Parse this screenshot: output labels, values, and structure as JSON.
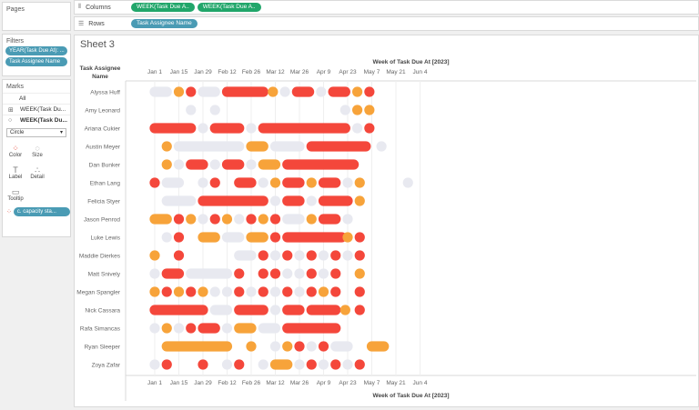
{
  "left_panel": {
    "pages_title": "Pages",
    "filters_title": "Filters",
    "filters": [
      "YEAR(Task Due At): ...",
      "Task Assignee Name"
    ],
    "marks_title": "Marks",
    "marks_rows": [
      {
        "icon": "",
        "label": "All",
        "bold": false
      },
      {
        "icon": "⊞",
        "label": "WEEK(Task Du...",
        "bold": false
      },
      {
        "icon": "○",
        "label": "WEEK(Task Du...",
        "bold": true
      }
    ],
    "mark_type": "Circle",
    "buttons": [
      {
        "icon": "color-icon",
        "glyph": "⁘",
        "label": "Color"
      },
      {
        "icon": "size-icon",
        "glyph": "◌",
        "label": "Size"
      },
      {
        "icon": "label-icon",
        "glyph": "T",
        "label": "Label"
      },
      {
        "icon": "detail-icon",
        "glyph": "∴",
        "label": "Detail"
      },
      {
        "icon": "tooltip-icon",
        "glyph": "▭",
        "label": "Tooltip"
      }
    ],
    "marks_field": "c. capacity sta..."
  },
  "shelves": {
    "columns_label": "Columns",
    "columns_pills": [
      "WEEK(Task Due A..",
      "WEEK(Task Due A.."
    ],
    "rows_label": "Rows",
    "rows_pills": [
      "Task Assignee Name"
    ]
  },
  "sheet_title": "Sheet 3",
  "colors": {
    "red": "#f4473b",
    "orange": "#f7a33a",
    "light": "#e8e9f0"
  },
  "chart_data": {
    "type": "gantt-timeline",
    "axis_title": "Week of Task Due At [2023]",
    "row_header": [
      "Task Assignee",
      "Name"
    ],
    "ticks": [
      "Jan 1",
      "Jan 15",
      "Jan 29",
      "Feb 12",
      "Feb 26",
      "Mar 12",
      "Mar 26",
      "Apr 9",
      "Apr 23",
      "May 7",
      "May 21",
      "Jun 4"
    ],
    "weeks": 23,
    "week_start": "Jan 1",
    "rows": [
      {
        "name": "Alyssa Huff",
        "segments": [
          [
            0,
            1,
            "light"
          ],
          [
            2,
            2,
            "orange"
          ],
          [
            3,
            3,
            "red"
          ],
          [
            4,
            5,
            "light"
          ],
          [
            6,
            9,
            "red"
          ],
          [
            9.8,
            9.8,
            "orange"
          ],
          [
            10.8,
            10.8,
            "light"
          ],
          [
            11.8,
            12.8,
            "red"
          ],
          [
            13.8,
            13.8,
            "light"
          ],
          [
            14.8,
            15.8,
            "red"
          ],
          [
            16.8,
            16.8,
            "orange"
          ],
          [
            17.8,
            17.8,
            "red"
          ]
        ]
      },
      {
        "name": "Amy Leonard",
        "segments": [
          [
            3,
            3,
            "light"
          ],
          [
            5,
            5,
            "light"
          ],
          [
            15.8,
            15.8,
            "light"
          ],
          [
            16.8,
            16.8,
            "orange"
          ],
          [
            17.8,
            17.8,
            "orange"
          ]
        ]
      },
      {
        "name": "Ariana Cukier",
        "segments": [
          [
            0,
            3,
            "red"
          ],
          [
            4,
            4,
            "light"
          ],
          [
            5,
            7,
            "red"
          ],
          [
            8,
            8,
            "light"
          ],
          [
            9,
            15.8,
            "red"
          ],
          [
            16.8,
            16.8,
            "light"
          ],
          [
            17.8,
            17.8,
            "red"
          ]
        ]
      },
      {
        "name": "Austin Meyer",
        "segments": [
          [
            1,
            1,
            "orange"
          ],
          [
            2,
            7,
            "light"
          ],
          [
            8,
            9,
            "orange"
          ],
          [
            10,
            12,
            "light"
          ],
          [
            13,
            17.5,
            "red"
          ],
          [
            18.8,
            18.8,
            "light"
          ]
        ]
      },
      {
        "name": "Dan Bunker",
        "segments": [
          [
            1,
            1,
            "orange"
          ],
          [
            2,
            2,
            "light"
          ],
          [
            3,
            4,
            "red"
          ],
          [
            5,
            5,
            "light"
          ],
          [
            6,
            7,
            "red"
          ],
          [
            8,
            8,
            "light"
          ],
          [
            9,
            10,
            "orange"
          ],
          [
            11,
            16.5,
            "red"
          ]
        ]
      },
      {
        "name": "Ethan Lang",
        "segments": [
          [
            0,
            0,
            "red"
          ],
          [
            1,
            2,
            "light"
          ],
          [
            4,
            4,
            "light"
          ],
          [
            5,
            5,
            "red"
          ],
          [
            7,
            8,
            "red"
          ],
          [
            9,
            9,
            "light"
          ],
          [
            10,
            10,
            "orange"
          ],
          [
            11,
            12,
            "red"
          ],
          [
            13,
            13,
            "orange"
          ],
          [
            14,
            15,
            "red"
          ],
          [
            16,
            16,
            "light"
          ],
          [
            17,
            17,
            "orange"
          ],
          [
            21,
            21,
            "light"
          ]
        ]
      },
      {
        "name": "Felicia Styer",
        "segments": [
          [
            1,
            3,
            "light"
          ],
          [
            4,
            9,
            "red"
          ],
          [
            10,
            10,
            "light"
          ],
          [
            11,
            12,
            "red"
          ],
          [
            13,
            13,
            "light"
          ],
          [
            14,
            16,
            "red"
          ],
          [
            17,
            17,
            "orange"
          ]
        ]
      },
      {
        "name": "Jason Penrod",
        "segments": [
          [
            0,
            1,
            "orange"
          ],
          [
            2,
            2,
            "red"
          ],
          [
            3,
            3,
            "orange"
          ],
          [
            4,
            4,
            "light"
          ],
          [
            5,
            5,
            "red"
          ],
          [
            6,
            6,
            "orange"
          ],
          [
            7,
            7,
            "light"
          ],
          [
            8,
            8,
            "red"
          ],
          [
            9,
            9,
            "orange"
          ],
          [
            10,
            10,
            "red"
          ],
          [
            11,
            12,
            "light"
          ],
          [
            13,
            13,
            "orange"
          ],
          [
            14,
            15,
            "red"
          ],
          [
            16,
            16,
            "light"
          ]
        ]
      },
      {
        "name": "Luke Lewis",
        "segments": [
          [
            1,
            1,
            "light"
          ],
          [
            2,
            2,
            "red"
          ],
          [
            4,
            5,
            "orange"
          ],
          [
            6,
            7,
            "light"
          ],
          [
            8,
            9,
            "orange"
          ],
          [
            10,
            10,
            "red"
          ],
          [
            11,
            15.5,
            "red"
          ],
          [
            16,
            16,
            "orange"
          ],
          [
            17,
            17,
            "red"
          ]
        ]
      },
      {
        "name": "Maddie Dierkes",
        "segments": [
          [
            0,
            0,
            "orange"
          ],
          [
            2,
            2,
            "red"
          ],
          [
            7,
            8,
            "light"
          ],
          [
            9,
            9,
            "red"
          ],
          [
            10,
            10,
            "light"
          ],
          [
            11,
            11,
            "red"
          ],
          [
            12,
            12,
            "light"
          ],
          [
            13,
            13,
            "red"
          ],
          [
            14,
            14,
            "light"
          ],
          [
            15,
            15,
            "red"
          ],
          [
            16,
            16,
            "light"
          ],
          [
            17,
            17,
            "red"
          ]
        ]
      },
      {
        "name": "Matt Snively",
        "segments": [
          [
            0,
            0,
            "light"
          ],
          [
            1,
            2,
            "red"
          ],
          [
            3,
            6,
            "light"
          ],
          [
            7,
            7,
            "red"
          ],
          [
            9,
            9,
            "red"
          ],
          [
            10,
            10,
            "red"
          ],
          [
            11,
            11,
            "light"
          ],
          [
            12,
            12,
            "light"
          ],
          [
            13,
            13,
            "red"
          ],
          [
            14,
            14,
            "light"
          ],
          [
            15,
            15,
            "red"
          ],
          [
            17,
            17,
            "orange"
          ]
        ]
      },
      {
        "name": "Megan Spangler",
        "segments": [
          [
            0,
            0,
            "orange"
          ],
          [
            1,
            1,
            "red"
          ],
          [
            2,
            2,
            "orange"
          ],
          [
            3,
            3,
            "red"
          ],
          [
            4,
            4,
            "orange"
          ],
          [
            5,
            5,
            "light"
          ],
          [
            6,
            6,
            "light"
          ],
          [
            7,
            7,
            "red"
          ],
          [
            8,
            8,
            "light"
          ],
          [
            9,
            9,
            "red"
          ],
          [
            10,
            10,
            "light"
          ],
          [
            11,
            11,
            "red"
          ],
          [
            12,
            12,
            "light"
          ],
          [
            13,
            13,
            "red"
          ],
          [
            14,
            14,
            "orange"
          ],
          [
            15,
            15,
            "red"
          ],
          [
            17,
            17,
            "red"
          ]
        ]
      },
      {
        "name": "Nick Cassara",
        "segments": [
          [
            0,
            4,
            "red"
          ],
          [
            5,
            6,
            "light"
          ],
          [
            7,
            9,
            "red"
          ],
          [
            10,
            10,
            "light"
          ],
          [
            11,
            12,
            "red"
          ],
          [
            13,
            15,
            "red"
          ],
          [
            15.8,
            15.8,
            "orange"
          ],
          [
            17,
            17,
            "red"
          ]
        ]
      },
      {
        "name": "Rafa Simancas",
        "segments": [
          [
            0,
            0,
            "light"
          ],
          [
            1,
            1,
            "orange"
          ],
          [
            2,
            2,
            "light"
          ],
          [
            3,
            3,
            "red"
          ],
          [
            4,
            5,
            "red"
          ],
          [
            6,
            6,
            "light"
          ],
          [
            7,
            8,
            "orange"
          ],
          [
            9,
            10,
            "light"
          ],
          [
            11,
            15,
            "red"
          ]
        ]
      },
      {
        "name": "Ryan Sleeper",
        "segments": [
          [
            1,
            6,
            "orange"
          ],
          [
            8,
            8,
            "orange"
          ],
          [
            10,
            10,
            "light"
          ],
          [
            11,
            11,
            "orange"
          ],
          [
            12,
            12,
            "red"
          ],
          [
            13,
            13,
            "light"
          ],
          [
            14,
            14,
            "red"
          ],
          [
            15,
            16,
            "light"
          ],
          [
            18,
            19,
            "orange"
          ]
        ]
      },
      {
        "name": "Zoya Zafar",
        "segments": [
          [
            0,
            0,
            "light"
          ],
          [
            1,
            1,
            "red"
          ],
          [
            4,
            4,
            "red"
          ],
          [
            6,
            6,
            "light"
          ],
          [
            7,
            7,
            "red"
          ],
          [
            9,
            9,
            "light"
          ],
          [
            10,
            11,
            "orange"
          ],
          [
            12,
            12,
            "light"
          ],
          [
            13,
            13,
            "red"
          ],
          [
            14,
            14,
            "light"
          ],
          [
            15,
            15,
            "red"
          ],
          [
            16,
            16,
            "light"
          ],
          [
            17,
            17,
            "red"
          ]
        ]
      }
    ]
  }
}
